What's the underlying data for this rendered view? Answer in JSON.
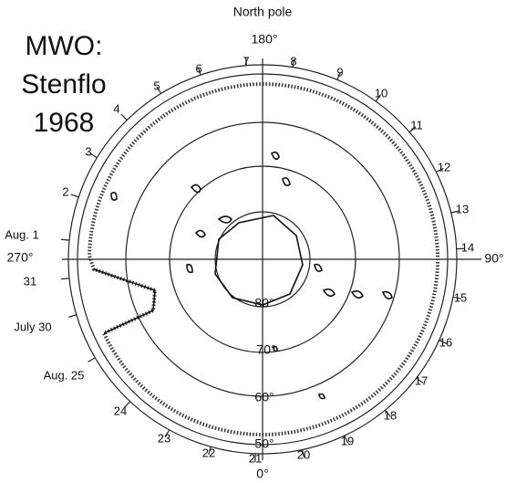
{
  "header": {
    "title": "North pole"
  },
  "note": {
    "lines": [
      "MWO:",
      "Stenflo",
      "1968"
    ]
  },
  "axis_labels": {
    "top": "180°",
    "bottom": "0°",
    "left": "270°",
    "right": "90°"
  },
  "latitudes": [
    "80°",
    "70°",
    "60°",
    "50°"
  ],
  "days": [
    "7",
    "8",
    "9",
    "10",
    "11",
    "12",
    "13",
    "14",
    "15",
    "16",
    "17",
    "18",
    "19",
    "20",
    "21",
    "22",
    "23",
    "24",
    "Aug. 25",
    "July 30",
    "31",
    "Aug. 1",
    "2",
    "3",
    "4",
    "5",
    "6"
  ]
}
